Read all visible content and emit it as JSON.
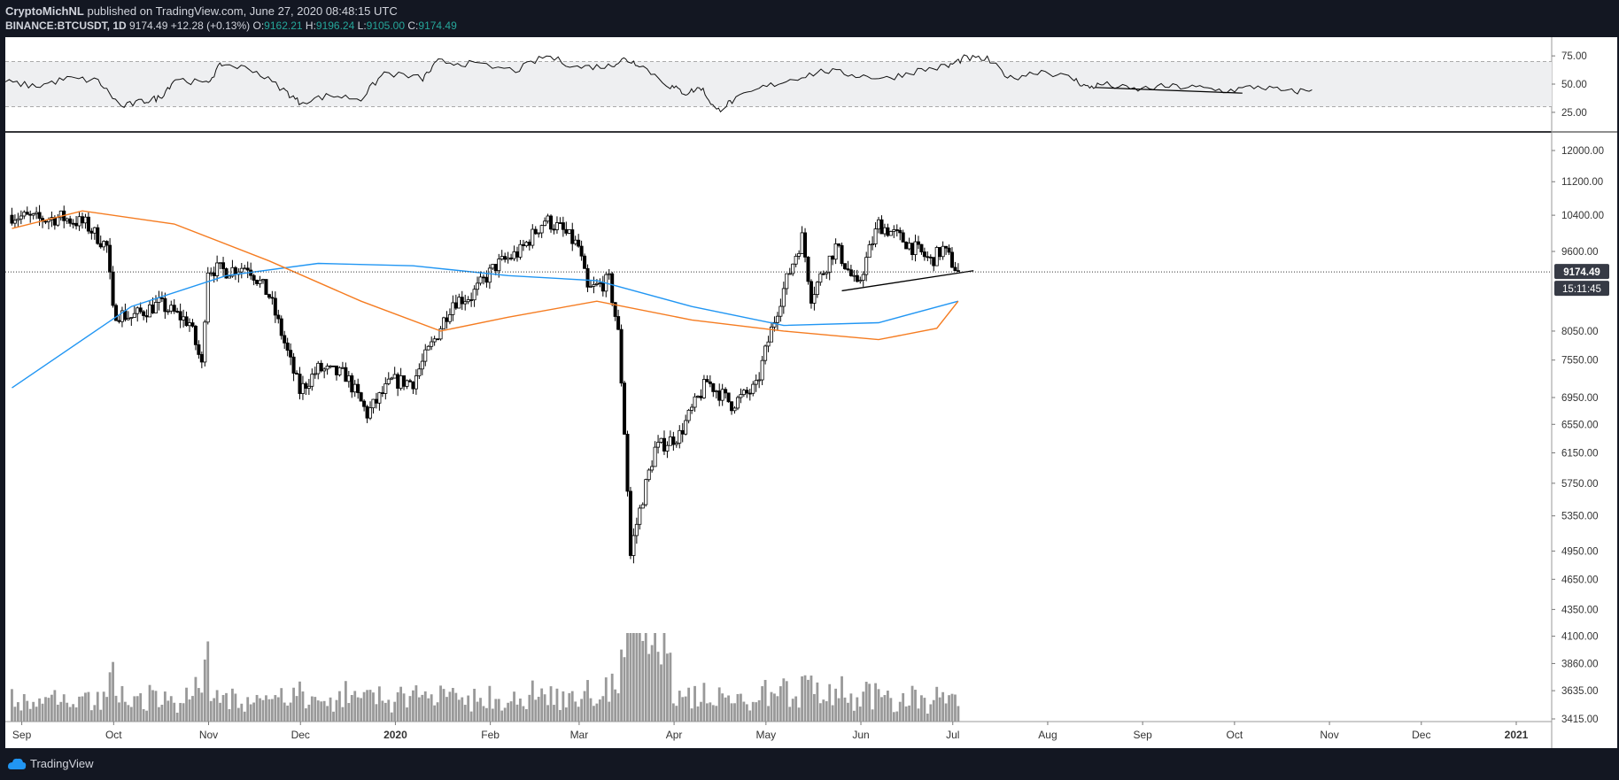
{
  "header": {
    "author": "CryptoMichNL",
    "published_text": "published on TradingView.com, June 27, 2020 08:48:15 UTC",
    "symbol": "BINANCE:BTCUSDT, 1D",
    "last": "9174.49",
    "change": "+12.28 (+0.13%)",
    "o_label": "O:",
    "o_value": "9162.21",
    "h_label": "H:",
    "h_value": "9196.24",
    "l_label": "L:",
    "l_value": "9105.00",
    "c_label": "C:",
    "c_value": "9174.49"
  },
  "footer": {
    "brand": "TradingView"
  },
  "colors": {
    "background": "#131722",
    "pane": "#ffffff",
    "candle": "#000000",
    "volume": "#999999",
    "ma_blue": "#2196f3",
    "ma_orange": "#f57c21",
    "rsi_band": "#eeeff1"
  },
  "chart_data": [
    {
      "type": "candlestick",
      "title": "",
      "x_tick_labels": [
        "Sep",
        "Oct",
        "Nov",
        "Dec",
        "2020",
        "Feb",
        "Mar",
        "Apr",
        "May",
        "Jun",
        "Jul",
        "Aug",
        "Sep",
        "Oct",
        "Nov",
        "Dec",
        "2021"
      ],
      "y_tick_labels": [
        "12000.00",
        "11200.00",
        "10400.00",
        "9600.00",
        "8050.00",
        "7550.00",
        "6950.00",
        "6550.00",
        "6150.00",
        "5750.00",
        "5350.00",
        "4950.00",
        "4650.00",
        "4350.00",
        "4100.00",
        "3860.00",
        "3635.00",
        "3415.00"
      ],
      "price_label": "9174.49",
      "countdown_label": "15:11:45",
      "close_series": [
        [
          "2019-08-23",
          10400
        ],
        [
          "2019-09-01",
          10300
        ],
        [
          "2019-09-08",
          10350
        ],
        [
          "2019-09-16",
          10200
        ],
        [
          "2019-09-23",
          9700
        ],
        [
          "2019-09-25",
          8400
        ],
        [
          "2019-10-01",
          8300
        ],
        [
          "2019-10-10",
          8550
        ],
        [
          "2019-10-20",
          8200
        ],
        [
          "2019-10-24",
          7450
        ],
        [
          "2019-10-26",
          9250
        ],
        [
          "2019-11-01",
          9200
        ],
        [
          "2019-11-08",
          9300
        ],
        [
          "2019-11-15",
          8700
        ],
        [
          "2019-11-22",
          7500
        ],
        [
          "2019-11-25",
          7050
        ],
        [
          "2019-12-01",
          7400
        ],
        [
          "2019-12-10",
          7300
        ],
        [
          "2019-12-17",
          6700
        ],
        [
          "2019-12-25",
          7200
        ],
        [
          "2020-01-01",
          7200
        ],
        [
          "2020-01-08",
          7900
        ],
        [
          "2020-01-14",
          8600
        ],
        [
          "2020-01-20",
          8700
        ],
        [
          "2020-01-28",
          9300
        ],
        [
          "2020-02-05",
          9600
        ],
        [
          "2020-02-13",
          10300
        ],
        [
          "2020-02-18",
          10100
        ],
        [
          "2020-02-24",
          9700
        ],
        [
          "2020-02-27",
          8800
        ],
        [
          "2020-03-05",
          9000
        ],
        [
          "2020-03-08",
          8000
        ],
        [
          "2020-03-12",
          4900
        ],
        [
          "2020-03-13",
          5100
        ],
        [
          "2020-03-20",
          6200
        ],
        [
          "2020-03-28",
          6400
        ],
        [
          "2020-04-06",
          7200
        ],
        [
          "2020-04-14",
          6850
        ],
        [
          "2020-04-22",
          7100
        ],
        [
          "2020-04-30",
          8650
        ],
        [
          "2020-05-07",
          9900
        ],
        [
          "2020-05-10",
          8700
        ],
        [
          "2020-05-18",
          9700
        ],
        [
          "2020-05-25",
          8850
        ],
        [
          "2020-06-01",
          10200
        ],
        [
          "2020-06-10",
          9800
        ],
        [
          "2020-06-18",
          9400
        ],
        [
          "2020-06-22",
          9650
        ],
        [
          "2020-06-27",
          9174
        ]
      ],
      "moving_average_1_blue": [
        [
          "2019-08-23",
          7100
        ],
        [
          "2019-10-01",
          8500
        ],
        [
          "2019-11-01",
          9100
        ],
        [
          "2019-12-01",
          9350
        ],
        [
          "2020-01-01",
          9300
        ],
        [
          "2020-02-01",
          9100
        ],
        [
          "2020-03-01",
          9000
        ],
        [
          "2020-04-01",
          8500
        ],
        [
          "2020-05-01",
          8150
        ],
        [
          "2020-06-01",
          8200
        ],
        [
          "2020-06-27",
          8600
        ]
      ],
      "moving_average_2_orange": [
        [
          "2019-08-23",
          10100
        ],
        [
          "2019-09-15",
          10500
        ],
        [
          "2019-10-15",
          10200
        ],
        [
          "2019-11-15",
          9400
        ],
        [
          "2019-12-15",
          8600
        ],
        [
          "2020-01-10",
          8050
        ],
        [
          "2020-02-01",
          8300
        ],
        [
          "2020-03-01",
          8600
        ],
        [
          "2020-04-01",
          8250
        ],
        [
          "2020-05-01",
          8050
        ],
        [
          "2020-06-01",
          7900
        ],
        [
          "2020-06-20",
          8100
        ],
        [
          "2020-06-27",
          8600
        ]
      ],
      "trendline": [
        [
          "2020-05-20",
          8800
        ],
        [
          "2020-07-02",
          9200
        ]
      ]
    },
    {
      "type": "line",
      "title": "",
      "y_tick_labels": [
        "75.00",
        "50.00",
        "25.00"
      ],
      "band": [
        30,
        70
      ],
      "rsi": [
        [
          0,
          52
        ],
        [
          0.02,
          48
        ],
        [
          0.04,
          55
        ],
        [
          0.06,
          53
        ],
        [
          0.075,
          30
        ],
        [
          0.09,
          35
        ],
        [
          0.1,
          38
        ],
        [
          0.11,
          55
        ],
        [
          0.13,
          50
        ],
        [
          0.14,
          68
        ],
        [
          0.16,
          63
        ],
        [
          0.18,
          45
        ],
        [
          0.19,
          34
        ],
        [
          0.21,
          40
        ],
        [
          0.23,
          37
        ],
        [
          0.245,
          60
        ],
        [
          0.27,
          55
        ],
        [
          0.28,
          70
        ],
        [
          0.3,
          68
        ],
        [
          0.33,
          62
        ],
        [
          0.35,
          75
        ],
        [
          0.37,
          65
        ],
        [
          0.39,
          66
        ],
        [
          0.4,
          72
        ],
        [
          0.41,
          68
        ],
        [
          0.43,
          48
        ],
        [
          0.44,
          42
        ],
        [
          0.45,
          47
        ],
        [
          0.46,
          26
        ],
        [
          0.47,
          35
        ],
        [
          0.49,
          47
        ],
        [
          0.51,
          55
        ],
        [
          0.53,
          62
        ],
        [
          0.55,
          58
        ],
        [
          0.57,
          55
        ],
        [
          0.59,
          62
        ],
        [
          0.61,
          66
        ],
        [
          0.62,
          73
        ],
        [
          0.635,
          72
        ],
        [
          0.65,
          55
        ],
        [
          0.67,
          62
        ],
        [
          0.69,
          55
        ],
        [
          0.7,
          47
        ],
        [
          0.71,
          50
        ],
        [
          0.73,
          45
        ],
        [
          0.75,
          48
        ],
        [
          0.77,
          47
        ],
        [
          0.79,
          44
        ],
        [
          0.81,
          48
        ],
        [
          0.83,
          43
        ],
        [
          0.845,
          45
        ]
      ],
      "trendline": [
        [
          0.705,
          47
        ],
        [
          0.8,
          42
        ]
      ]
    }
  ]
}
